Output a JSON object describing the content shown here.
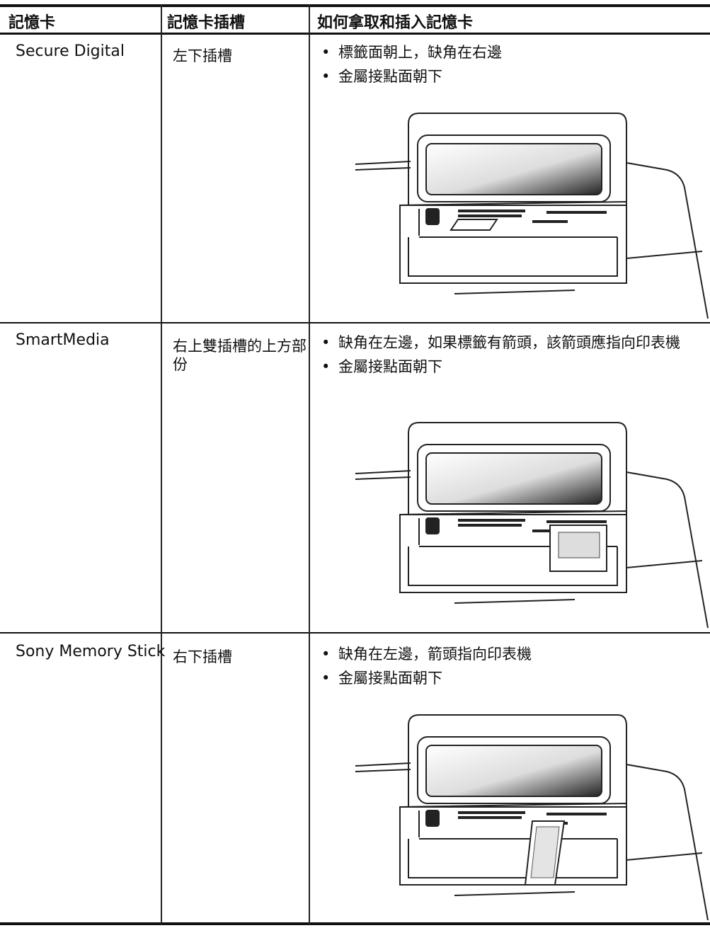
{
  "table": {
    "header": [
      "記憶卡",
      "記憶卡插槽",
      "如何拿取和插入記憶卡"
    ],
    "rows": [
      {
        "card": "Secure Digital",
        "slot": "左下插槽",
        "instructions": [
          "標籤面朝上，缺角在右邊",
          "金屬接點面朝下"
        ]
      },
      {
        "card": "SmartMedia",
        "slot": "右上雙插槽的上方部份",
        "instructions": [
          "缺角在左邊，如果標籤有箭頭，該箭頭應指向印表機",
          "金屬接點面朝下"
        ]
      },
      {
        "card": "Sony Memory Stick",
        "slot": "右下插槽",
        "instructions": [
          "缺角在左邊，箭頭指向印表機",
          "金屬接點面朝下"
        ]
      }
    ]
  }
}
